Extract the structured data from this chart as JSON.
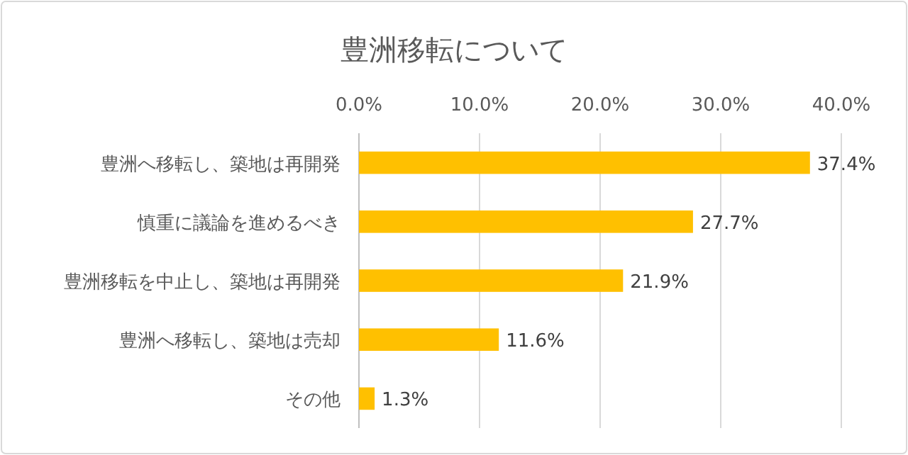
{
  "chart_data": {
    "type": "bar",
    "orientation": "horizontal",
    "title": "豊洲移転について",
    "categories": [
      "豊洲へ移転し、築地は再開発",
      "慎重に議論を進めるべき",
      "豊洲移転を中止し、築地は再開発",
      "豊洲へ移転し、築地は売却",
      "その他"
    ],
    "values": [
      37.4,
      27.7,
      21.9,
      11.6,
      1.3
    ],
    "value_labels": [
      "37.4%",
      "27.7%",
      "21.9%",
      "11.6%",
      "1.3%"
    ],
    "color": "#ffc000",
    "xlim": [
      0,
      40
    ],
    "xticks": [
      {
        "value": 0,
        "label": "0.0%"
      },
      {
        "value": 10,
        "label": "10.0%"
      },
      {
        "value": 20,
        "label": "20.0%"
      },
      {
        "value": 30,
        "label": "30.0%"
      },
      {
        "value": 40,
        "label": "40.0%"
      }
    ],
    "grid": "x"
  }
}
